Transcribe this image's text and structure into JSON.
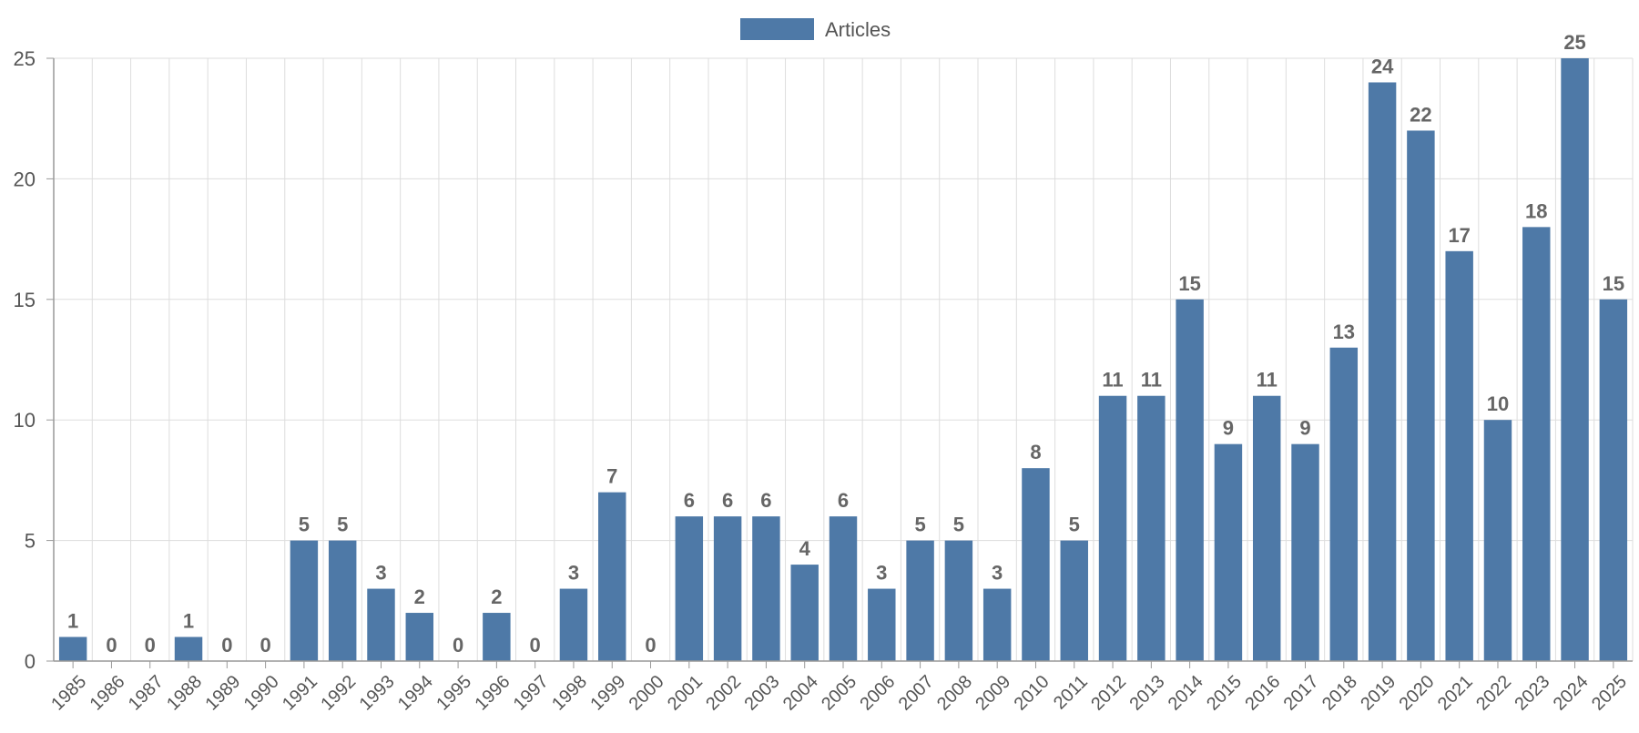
{
  "chart_data": {
    "type": "bar",
    "categories": [
      "1985",
      "1986",
      "1987",
      "1988",
      "1989",
      "1990",
      "1991",
      "1992",
      "1993",
      "1994",
      "1995",
      "1996",
      "1997",
      "1998",
      "1999",
      "2000",
      "2001",
      "2002",
      "2003",
      "2004",
      "2005",
      "2006",
      "2007",
      "2008",
      "2009",
      "2010",
      "2011",
      "2012",
      "2013",
      "2014",
      "2015",
      "2016",
      "2017",
      "2018",
      "2019",
      "2020",
      "2021",
      "2022",
      "2023",
      "2024",
      "2025"
    ],
    "series": [
      {
        "name": "Articles",
        "color": "#4e79a7",
        "values": [
          1,
          0,
          0,
          1,
          0,
          0,
          5,
          5,
          3,
          2,
          0,
          2,
          0,
          3,
          7,
          0,
          6,
          6,
          6,
          4,
          6,
          3,
          5,
          5,
          3,
          8,
          5,
          11,
          11,
          15,
          9,
          11,
          9,
          13,
          24,
          22,
          17,
          10,
          18,
          25,
          15
        ]
      }
    ],
    "ylim": [
      0,
      25
    ],
    "yticks": [
      0,
      5,
      10,
      15,
      20,
      25
    ],
    "grid": true,
    "legend_position": "top-center",
    "data_labels": true,
    "title": "",
    "xlabel": "",
    "ylabel": ""
  }
}
